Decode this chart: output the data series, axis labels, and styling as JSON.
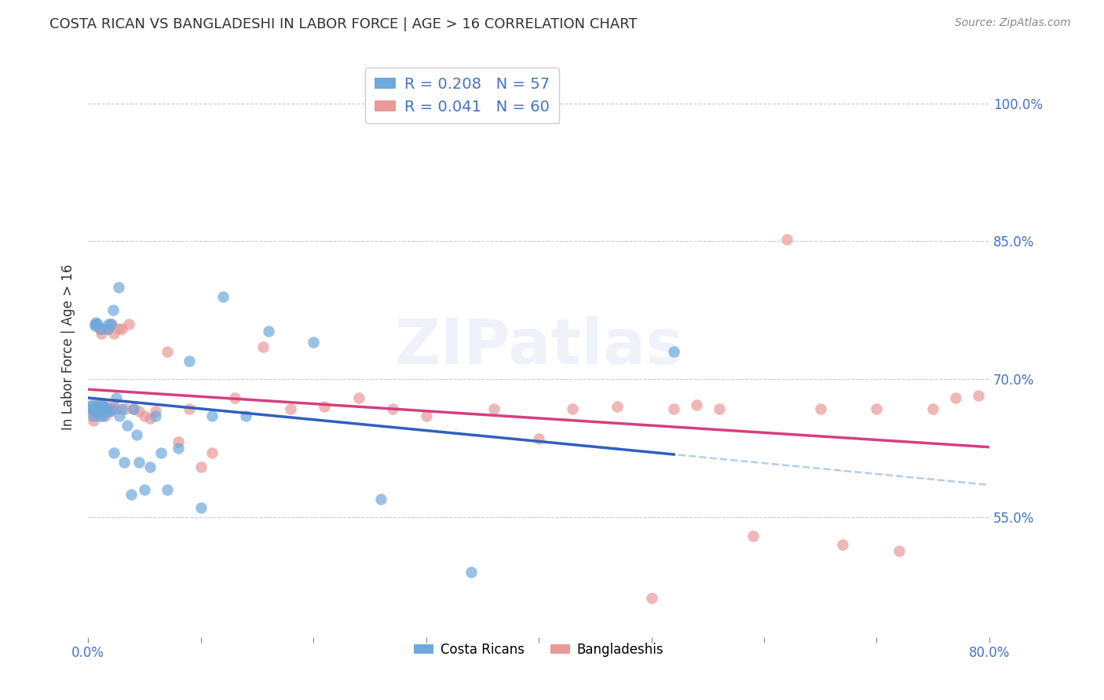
{
  "title": "COSTA RICAN VS BANGLADESHI IN LABOR FORCE | AGE > 16 CORRELATION CHART",
  "source": "Source: ZipAtlas.com",
  "ylabel": "In Labor Force | Age > 16",
  "xmin": 0.0,
  "xmax": 0.8,
  "ymin": 0.42,
  "ymax": 1.05,
  "yticks": [
    0.55,
    0.7,
    0.85,
    1.0
  ],
  "yticklabels": [
    "55.0%",
    "70.0%",
    "85.0%",
    "100.0%"
  ],
  "xtick_positions": [
    0.0,
    0.1,
    0.2,
    0.3,
    0.4,
    0.5,
    0.6,
    0.7,
    0.8
  ],
  "xtick_labels": [
    "0.0%",
    "",
    "",
    "",
    "",
    "",
    "",
    "",
    "80.0%"
  ],
  "blue_R": 0.208,
  "blue_N": 57,
  "pink_R": 0.041,
  "pink_N": 60,
  "blue_color": "#6fa8dc",
  "pink_color": "#ea9999",
  "blue_line_color": "#3060c0",
  "pink_line_color": "#d44080",
  "dash_color": "#b0c8e8",
  "watermark_text": "ZIPatlas",
  "legend_label_blue": "Costa Ricans",
  "legend_label_pink": "Bangladeshis",
  "blue_x": [
    0.002,
    0.003,
    0.004,
    0.005,
    0.005,
    0.006,
    0.006,
    0.007,
    0.007,
    0.008,
    0.008,
    0.009,
    0.009,
    0.01,
    0.01,
    0.011,
    0.011,
    0.012,
    0.012,
    0.013,
    0.013,
    0.014,
    0.015,
    0.016,
    0.017,
    0.018,
    0.019,
    0.02,
    0.021,
    0.022,
    0.023,
    0.025,
    0.027,
    0.028,
    0.03,
    0.032,
    0.035,
    0.038,
    0.04,
    0.043,
    0.045,
    0.05,
    0.055,
    0.06,
    0.065,
    0.07,
    0.08,
    0.09,
    0.1,
    0.11,
    0.12,
    0.14,
    0.16,
    0.2,
    0.26,
    0.34,
    0.52
  ],
  "blue_y": [
    0.67,
    0.672,
    0.668,
    0.66,
    0.665,
    0.758,
    0.76,
    0.762,
    0.665,
    0.668,
    0.76,
    0.665,
    0.672,
    0.67,
    0.66,
    0.755,
    0.67,
    0.672,
    0.668,
    0.66,
    0.67,
    0.67,
    0.668,
    0.665,
    0.755,
    0.76,
    0.665,
    0.76,
    0.668,
    0.775,
    0.62,
    0.68,
    0.8,
    0.66,
    0.668,
    0.61,
    0.65,
    0.575,
    0.668,
    0.64,
    0.61,
    0.58,
    0.605,
    0.66,
    0.62,
    0.58,
    0.625,
    0.72,
    0.56,
    0.66,
    0.79,
    0.66,
    0.752,
    0.74,
    0.57,
    0.49,
    0.73
  ],
  "pink_x": [
    0.003,
    0.004,
    0.005,
    0.006,
    0.007,
    0.008,
    0.009,
    0.01,
    0.011,
    0.012,
    0.013,
    0.014,
    0.015,
    0.016,
    0.017,
    0.018,
    0.019,
    0.02,
    0.021,
    0.022,
    0.023,
    0.025,
    0.027,
    0.03,
    0.033,
    0.036,
    0.04,
    0.045,
    0.05,
    0.055,
    0.06,
    0.07,
    0.08,
    0.09,
    0.1,
    0.11,
    0.13,
    0.155,
    0.18,
    0.21,
    0.24,
    0.27,
    0.3,
    0.36,
    0.4,
    0.43,
    0.47,
    0.5,
    0.52,
    0.54,
    0.56,
    0.59,
    0.62,
    0.65,
    0.67,
    0.7,
    0.72,
    0.75,
    0.77,
    0.79
  ],
  "pink_y": [
    0.668,
    0.66,
    0.655,
    0.665,
    0.672,
    0.668,
    0.665,
    0.755,
    0.67,
    0.75,
    0.755,
    0.668,
    0.66,
    0.672,
    0.668,
    0.755,
    0.668,
    0.665,
    0.76,
    0.67,
    0.75,
    0.668,
    0.755,
    0.755,
    0.668,
    0.76,
    0.668,
    0.665,
    0.66,
    0.658,
    0.665,
    0.73,
    0.632,
    0.668,
    0.605,
    0.62,
    0.68,
    0.735,
    0.668,
    0.67,
    0.68,
    0.668,
    0.66,
    0.668,
    0.635,
    0.668,
    0.67,
    0.462,
    0.668,
    0.672,
    0.668,
    0.53,
    0.852,
    0.668,
    0.52,
    0.668,
    0.513,
    0.668,
    0.68,
    0.682
  ]
}
